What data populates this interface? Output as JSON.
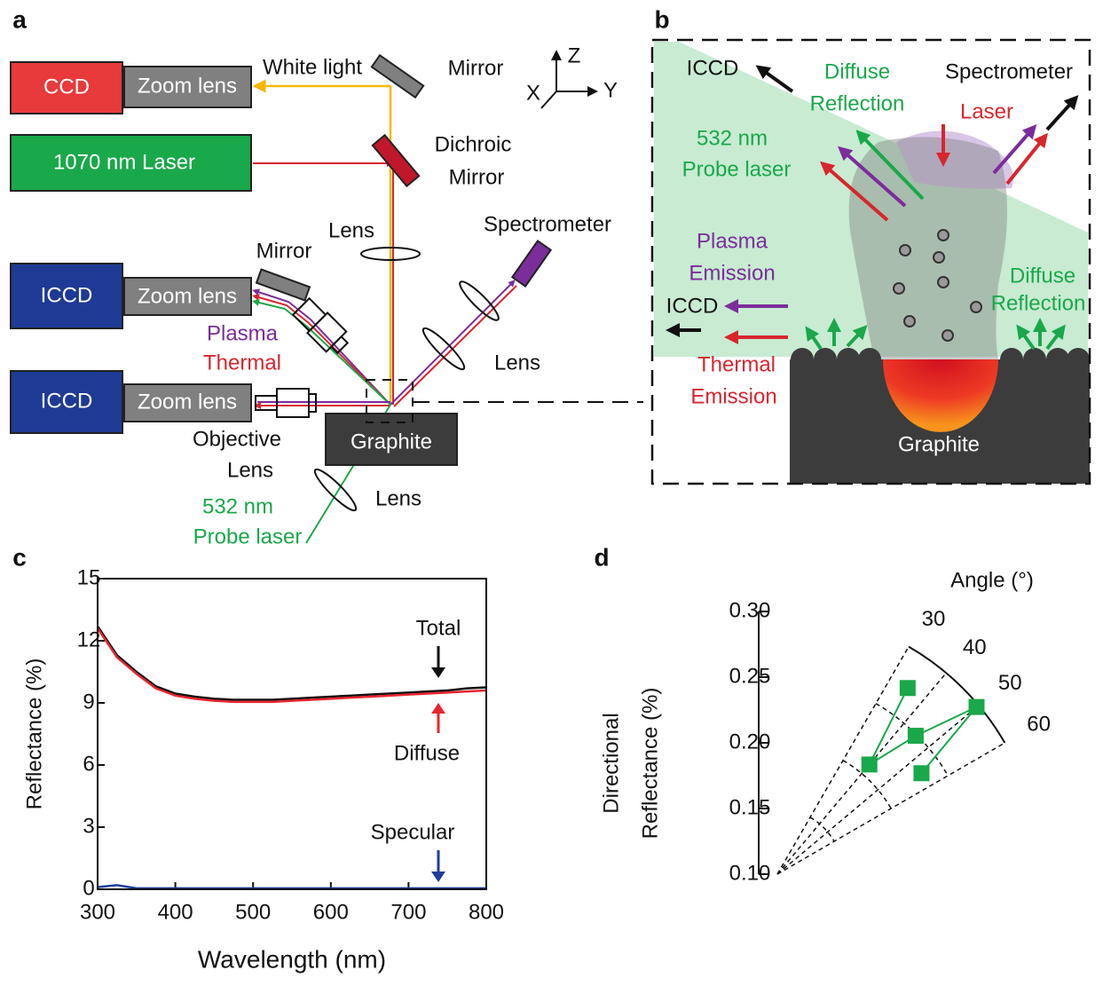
{
  "panel_labels": [
    "a",
    "b",
    "c",
    "d"
  ],
  "diagram_a": {
    "boxes": [
      "CCD",
      "Zoom lens",
      "1070 nm Laser",
      "ICCD",
      "Zoom lens",
      "ICCD",
      "Zoom lens",
      "Graphite"
    ],
    "labels": [
      "White light",
      "Mirror",
      "Dichroic",
      "Mirror",
      "Lens",
      "Mirror",
      "Spectrometer",
      "Plasma",
      "Thermal",
      "Lens",
      "Objective",
      "Lens",
      "Lens",
      "532 nm",
      "Probe laser"
    ],
    "axes": [
      "Z",
      "X",
      "Y"
    ]
  },
  "diagram_b": {
    "labels": [
      "ICCD",
      "Diffuse",
      "Reflection",
      "Spectrometer",
      "Laser",
      "532 nm",
      "Probe laser",
      "Plasma",
      "Emission",
      "ICCD",
      "Diffuse",
      "Reflection",
      "Thermal",
      "Emission",
      "Graphite"
    ]
  },
  "chart_data": [
    {
      "type": "line",
      "xlabel": "Wavelength (nm)",
      "ylabel": "Reflectance (%)",
      "x": [
        300,
        325,
        350,
        375,
        400,
        425,
        450,
        475,
        500,
        525,
        550,
        575,
        600,
        625,
        650,
        675,
        700,
        725,
        750,
        775,
        800
      ],
      "series": [
        {
          "name": "Total",
          "color": "#111111",
          "values": [
            12.7,
            11.3,
            10.5,
            9.8,
            9.45,
            9.3,
            9.2,
            9.15,
            9.15,
            9.15,
            9.2,
            9.25,
            9.3,
            9.35,
            9.4,
            9.45,
            9.5,
            9.55,
            9.6,
            9.7,
            9.75
          ]
        },
        {
          "name": "Diffuse",
          "color": "#e8262e",
          "values": [
            12.6,
            11.2,
            10.4,
            9.7,
            9.35,
            9.2,
            9.1,
            9.05,
            9.05,
            9.05,
            9.1,
            9.15,
            9.2,
            9.25,
            9.3,
            9.35,
            9.4,
            9.45,
            9.5,
            9.55,
            9.6
          ]
        },
        {
          "name": "Specular",
          "color": "#1f3f99",
          "values": [
            0.1,
            0.2,
            0.05,
            0.05,
            0.05,
            0.05,
            0.05,
            0.05,
            0.05,
            0.05,
            0.05,
            0.05,
            0.05,
            0.05,
            0.05,
            0.05,
            0.05,
            0.05,
            0.05,
            0.05,
            0.05
          ]
        }
      ],
      "xlim": [
        300,
        800
      ],
      "xticks": [
        300,
        400,
        500,
        600,
        700,
        800
      ],
      "ylim": [
        0,
        15
      ],
      "yticks": [
        0,
        3,
        6,
        9,
        12,
        15
      ]
    },
    {
      "type": "polar",
      "theta_label": "Angle (°)",
      "ylabel": [
        "Directional",
        "Reflectance (%)"
      ],
      "theta": [
        35,
        40,
        45,
        50,
        55
      ],
      "values": [
        0.273,
        0.209,
        0.249,
        0.298,
        0.234
      ],
      "color": "#19a84a",
      "thetalim": [
        30,
        60
      ],
      "thetaticks": [
        30,
        40,
        50,
        60
      ],
      "rlim": [
        0.1,
        0.3
      ],
      "rticks": [
        {
          "value": 0.1,
          "label": "0.10"
        },
        {
          "value": 0.15,
          "label": "0.15"
        },
        {
          "value": 0.2,
          "label": "0.20"
        },
        {
          "value": 0.25,
          "label": "0.25"
        },
        {
          "value": 0.3,
          "label": "0.30"
        }
      ]
    }
  ]
}
